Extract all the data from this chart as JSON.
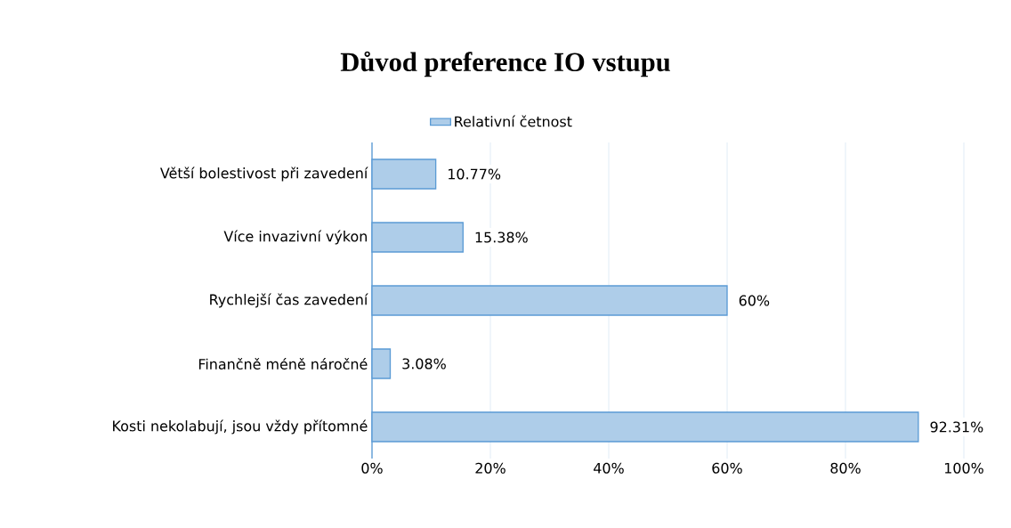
{
  "chart_data": {
    "type": "bar",
    "orientation": "horizontal",
    "title": "Důvod preference IO vstupu",
    "categories": [
      "Větší bolestivost při zavedení",
      "Více invazivní výkon",
      "Rychlejší čas zavedení",
      "Finančně méně náročné",
      "Kosti nekolabují, jsou vždy přítomné"
    ],
    "series": [
      {
        "name": "Relativní četnost",
        "color": "#aecde9",
        "values": [
          10.77,
          15.38,
          60,
          3.08,
          92.31
        ],
        "value_labels": [
          "10.77%",
          "15.38%",
          "60%",
          "3.08%",
          "92.31%"
        ]
      }
    ],
    "xlim": [
      0,
      100
    ],
    "xticks": [
      {
        "value": 0,
        "label": "0%"
      },
      {
        "value": 20,
        "label": "20%"
      },
      {
        "value": 40,
        "label": "40%"
      },
      {
        "value": 60,
        "label": "60%"
      },
      {
        "value": 80,
        "label": "80%"
      },
      {
        "value": 100,
        "label": "100%"
      }
    ],
    "grid": "x",
    "legend": "top"
  }
}
